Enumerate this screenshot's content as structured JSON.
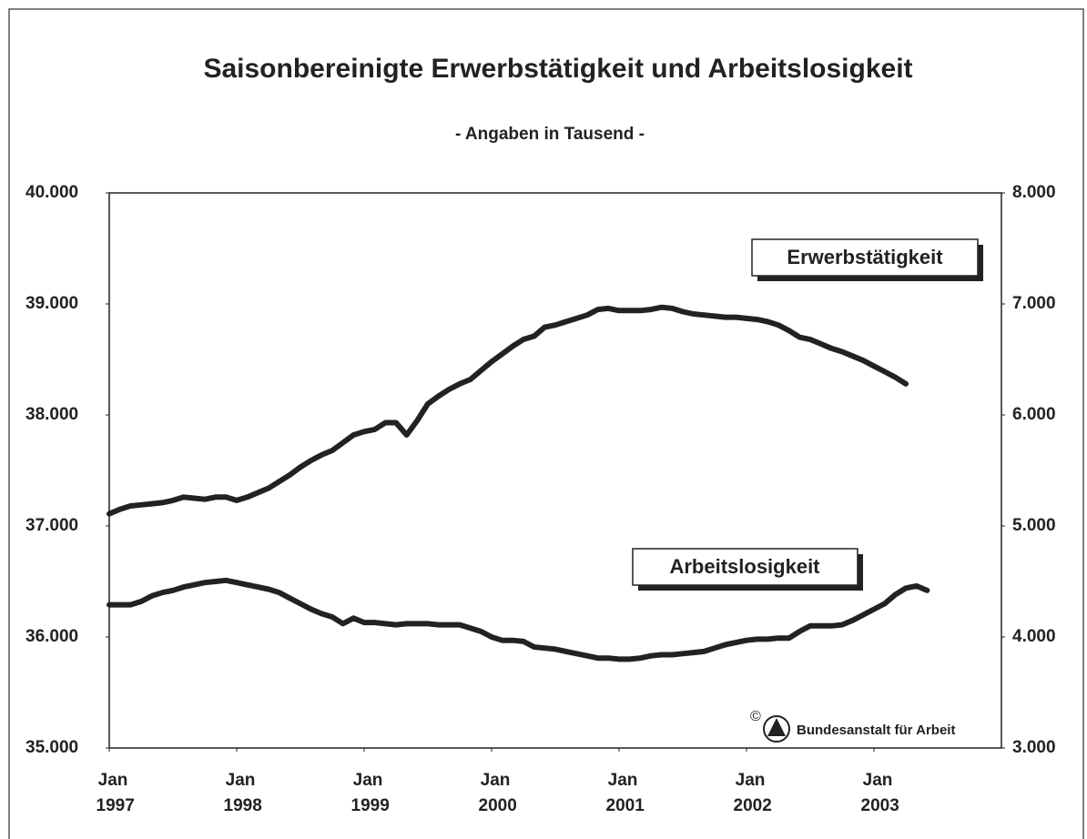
{
  "chart_data": {
    "type": "line",
    "title": "Saisonbereinigte Erwerbstätigkeit und Arbeitslosigkeit",
    "subtitle": "- Angaben in Tausend -",
    "x": [
      "1997-01",
      "1997-02",
      "1997-03",
      "1997-04",
      "1997-05",
      "1997-06",
      "1997-07",
      "1997-08",
      "1997-09",
      "1997-10",
      "1997-11",
      "1997-12",
      "1998-01",
      "1998-02",
      "1998-03",
      "1998-04",
      "1998-05",
      "1998-06",
      "1998-07",
      "1998-08",
      "1998-09",
      "1998-10",
      "1998-11",
      "1998-12",
      "1999-01",
      "1999-02",
      "1999-03",
      "1999-04",
      "1999-05",
      "1999-06",
      "1999-07",
      "1999-08",
      "1999-09",
      "1999-10",
      "1999-11",
      "1999-12",
      "2000-01",
      "2000-02",
      "2000-03",
      "2000-04",
      "2000-05",
      "2000-06",
      "2000-07",
      "2000-08",
      "2000-09",
      "2000-10",
      "2000-11",
      "2000-12",
      "2001-01",
      "2001-02",
      "2001-03",
      "2001-04",
      "2001-05",
      "2001-06",
      "2001-07",
      "2001-08",
      "2001-09",
      "2001-10",
      "2001-11",
      "2001-12",
      "2002-01",
      "2002-02",
      "2002-03",
      "2002-04",
      "2002-05",
      "2002-06",
      "2002-07",
      "2002-08",
      "2002-09",
      "2002-10",
      "2002-11",
      "2002-12",
      "2003-01",
      "2003-02",
      "2003-03",
      "2003-04",
      "2003-05",
      "2003-06"
    ],
    "xlim": [
      "1997-01",
      "2004-01"
    ],
    "xticks": [
      {
        "value": "1997-01",
        "label": "Jan 1997"
      },
      {
        "value": "1998-01",
        "label": "Jan 1998"
      },
      {
        "value": "1999-01",
        "label": "Jan 1999"
      },
      {
        "value": "2000-01",
        "label": "Jan 2000"
      },
      {
        "value": "2001-01",
        "label": "Jan 2001"
      },
      {
        "value": "2002-01",
        "label": "Jan 2002"
      },
      {
        "value": "2003-01",
        "label": "Jan 2003"
      }
    ],
    "ylim": [
      35000,
      40000
    ],
    "yticks": [
      {
        "value": 35000,
        "label": "35.000"
      },
      {
        "value": 36000,
        "label": "36.000"
      },
      {
        "value": 37000,
        "label": "37.000"
      },
      {
        "value": 38000,
        "label": "38.000"
      },
      {
        "value": 39000,
        "label": "39.000"
      },
      {
        "value": 40000,
        "label": "40.000"
      }
    ],
    "y2lim": [
      3000,
      8000
    ],
    "y2ticks": [
      {
        "value": 3000,
        "label": "3.000"
      },
      {
        "value": 4000,
        "label": "4.000"
      },
      {
        "value": 5000,
        "label": "5.000"
      },
      {
        "value": 6000,
        "label": "6.000"
      },
      {
        "value": 7000,
        "label": "7.000"
      },
      {
        "value": 8000,
        "label": "8.000"
      }
    ],
    "series": [
      {
        "name": "Erwerbstätigkeit",
        "color": "#222222",
        "axis": "y",
        "values": [
          37110,
          37150,
          37180,
          37190,
          37200,
          37210,
          37230,
          37260,
          37250,
          37240,
          37260,
          37260,
          37230,
          37260,
          37300,
          37340,
          37400,
          37460,
          37530,
          37590,
          37640,
          37680,
          37750,
          37820,
          37850,
          37870,
          37930,
          37930,
          37820,
          37950,
          38100,
          38170,
          38230,
          38280,
          38320,
          38400,
          38480,
          38550,
          38620,
          38680,
          38710,
          38790,
          38810,
          38840,
          38870,
          38900,
          38950,
          38960,
          38940,
          38940,
          38940,
          38950,
          38970,
          38960,
          38930,
          38910,
          38900,
          38890,
          38880,
          38880,
          38870,
          38860,
          38840,
          38810,
          38760,
          38700,
          38680,
          38640,
          38600,
          38570,
          38530,
          38490,
          38440,
          38390,
          38340,
          38280,
          null,
          null
        ]
      },
      {
        "name": "Arbeitslosigkeit",
        "color": "#222222",
        "axis": "y2",
        "values": [
          4290,
          4290,
          4290,
          4320,
          4370,
          4400,
          4420,
          4450,
          4470,
          4490,
          4500,
          4510,
          4490,
          4470,
          4450,
          4430,
          4400,
          4350,
          4300,
          4250,
          4210,
          4180,
          4120,
          4170,
          4130,
          4130,
          4120,
          4110,
          4120,
          4120,
          4120,
          4110,
          4110,
          4110,
          4080,
          4050,
          4000,
          3970,
          3970,
          3960,
          3910,
          3900,
          3890,
          3870,
          3850,
          3830,
          3810,
          3810,
          3800,
          3800,
          3810,
          3830,
          3840,
          3840,
          3850,
          3860,
          3870,
          3900,
          3930,
          3950,
          3970,
          3980,
          3980,
          3990,
          3990,
          4050,
          4100,
          4100,
          4100,
          4110,
          4150,
          4200,
          4250,
          4300,
          4380,
          4440,
          4460,
          4420
        ]
      }
    ],
    "source": "Bundesanstalt für Arbeit",
    "copyright": "©"
  }
}
